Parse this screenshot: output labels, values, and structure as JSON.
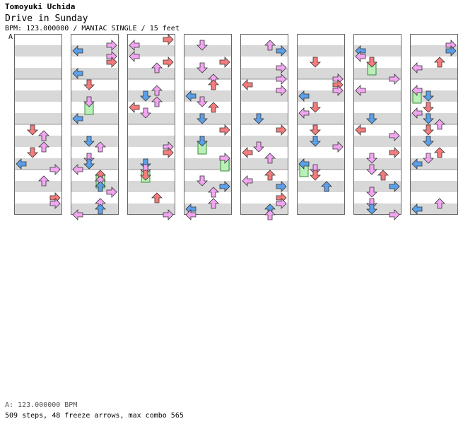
{
  "header": {
    "artist": "Tomoyuki Uchida",
    "title": "Drive in Sunday",
    "meta": "BPM: 123.000000 / MANIAC SINGLE / 15 feet",
    "marker": "A"
  },
  "footer": {
    "bpm_line": "A: 123.000000 BPM",
    "stats": "509 steps, 48 freeze arrows, max combo 565"
  },
  "chart_data": {
    "type": "step-chart",
    "columns_count": 8,
    "measures_per_column": 4,
    "lanes": [
      "left",
      "down",
      "up",
      "right"
    ],
    "total_steps": 509,
    "freeze_arrows": 48,
    "max_combo": 565,
    "colors": {
      "quarter": "#f47c7c",
      "eighth": "#5aa0ea",
      "sixteenth": "#f2a6f2",
      "freeze": "#b8f0b8",
      "freeze_border": "#3a8a3a",
      "shock": "#f0f000",
      "stripe": "#d8d8d8",
      "border": "#666666"
    }
  }
}
